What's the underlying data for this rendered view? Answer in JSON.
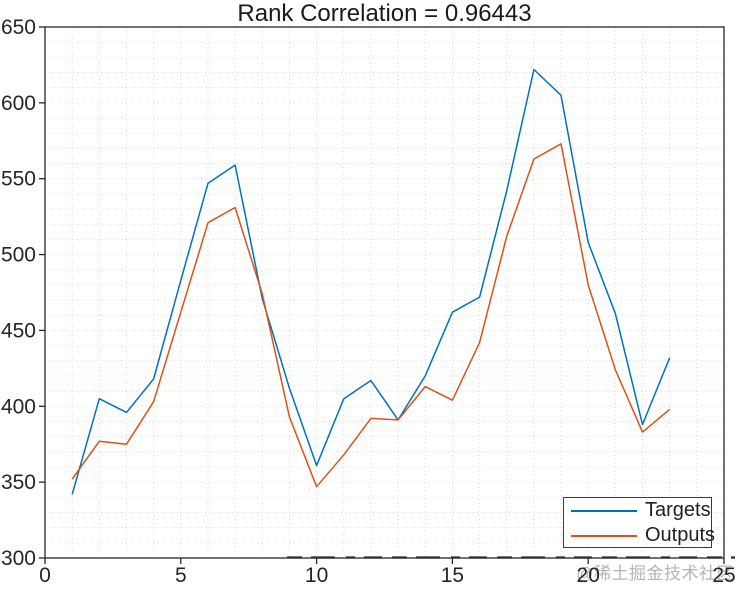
{
  "watermark": "@稀土掘金技术社区",
  "colors": {
    "targets_line": "#0072BD",
    "outputs_line": "#D95319",
    "grid": "#d9d9d9",
    "axis": "#262626",
    "tick_text": "#262626",
    "watermark_text": "#b5b5b5",
    "strikethrough": "#2e2e2e"
  },
  "chart_data": {
    "type": "line",
    "title": "Rank Correlation = 0.96443",
    "xlabel": "",
    "ylabel": "",
    "xlim": [
      0,
      25
    ],
    "ylim": [
      300,
      650
    ],
    "xticks": [
      0,
      5,
      10,
      15,
      20,
      25
    ],
    "yticks": [
      300,
      350,
      400,
      450,
      500,
      550,
      600,
      650
    ],
    "grid": "minor-dotted",
    "legend_position": "southeast",
    "x": [
      1,
      2,
      3,
      4,
      5,
      6,
      7,
      8,
      9,
      10,
      11,
      12,
      13,
      14,
      15,
      16,
      17,
      18,
      19,
      20,
      21,
      22,
      23
    ],
    "series": [
      {
        "name": "Targets",
        "color": "#0072BD",
        "values": [
          342,
          405,
          396,
          418,
          483,
          547,
          559,
          471,
          412,
          361,
          405,
          417,
          391,
          420,
          462,
          472,
          542,
          622,
          605,
          508,
          461,
          388,
          432
        ]
      },
      {
        "name": "Outputs",
        "color": "#D95319",
        "values": [
          352,
          377,
          375,
          403,
          462,
          521,
          531,
          474,
          393,
          347,
          368,
          392,
          391,
          413,
          404,
          442,
          512,
          563,
          573,
          480,
          424,
          383,
          398
        ]
      }
    ]
  }
}
